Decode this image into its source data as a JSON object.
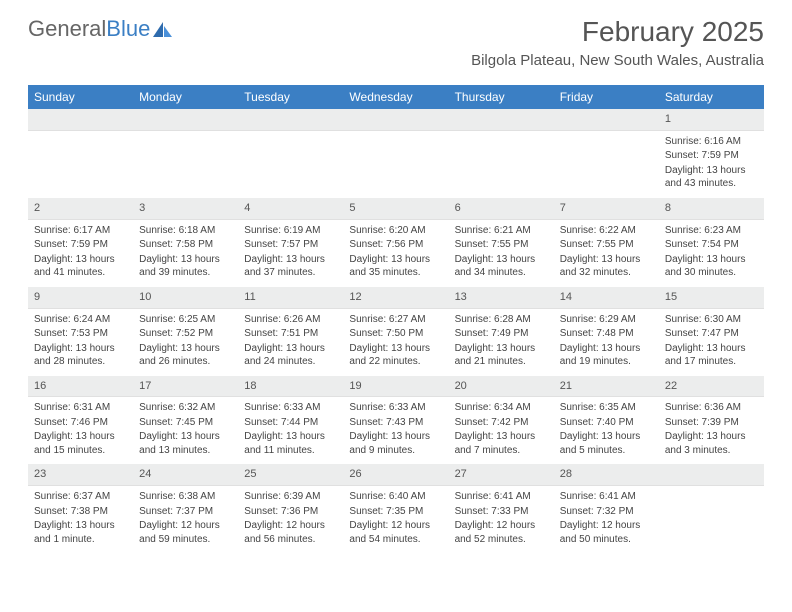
{
  "logo": {
    "text_gray": "General",
    "text_blue": "Blue"
  },
  "title": "February 2025",
  "location": "Bilgola Plateau, New South Wales, Australia",
  "colors": {
    "header_bg": "#3b7fc4",
    "header_text": "#ffffff",
    "daynum_bg": "#eceded",
    "text": "#444444"
  },
  "daysOfWeek": [
    "Sunday",
    "Monday",
    "Tuesday",
    "Wednesday",
    "Thursday",
    "Friday",
    "Saturday"
  ],
  "weeks": [
    [
      null,
      null,
      null,
      null,
      null,
      null,
      {
        "num": "1",
        "sunrise": "Sunrise: 6:16 AM",
        "sunset": "Sunset: 7:59 PM",
        "daylight": "Daylight: 13 hours and 43 minutes."
      }
    ],
    [
      {
        "num": "2",
        "sunrise": "Sunrise: 6:17 AM",
        "sunset": "Sunset: 7:59 PM",
        "daylight": "Daylight: 13 hours and 41 minutes."
      },
      {
        "num": "3",
        "sunrise": "Sunrise: 6:18 AM",
        "sunset": "Sunset: 7:58 PM",
        "daylight": "Daylight: 13 hours and 39 minutes."
      },
      {
        "num": "4",
        "sunrise": "Sunrise: 6:19 AM",
        "sunset": "Sunset: 7:57 PM",
        "daylight": "Daylight: 13 hours and 37 minutes."
      },
      {
        "num": "5",
        "sunrise": "Sunrise: 6:20 AM",
        "sunset": "Sunset: 7:56 PM",
        "daylight": "Daylight: 13 hours and 35 minutes."
      },
      {
        "num": "6",
        "sunrise": "Sunrise: 6:21 AM",
        "sunset": "Sunset: 7:55 PM",
        "daylight": "Daylight: 13 hours and 34 minutes."
      },
      {
        "num": "7",
        "sunrise": "Sunrise: 6:22 AM",
        "sunset": "Sunset: 7:55 PM",
        "daylight": "Daylight: 13 hours and 32 minutes."
      },
      {
        "num": "8",
        "sunrise": "Sunrise: 6:23 AM",
        "sunset": "Sunset: 7:54 PM",
        "daylight": "Daylight: 13 hours and 30 minutes."
      }
    ],
    [
      {
        "num": "9",
        "sunrise": "Sunrise: 6:24 AM",
        "sunset": "Sunset: 7:53 PM",
        "daylight": "Daylight: 13 hours and 28 minutes."
      },
      {
        "num": "10",
        "sunrise": "Sunrise: 6:25 AM",
        "sunset": "Sunset: 7:52 PM",
        "daylight": "Daylight: 13 hours and 26 minutes."
      },
      {
        "num": "11",
        "sunrise": "Sunrise: 6:26 AM",
        "sunset": "Sunset: 7:51 PM",
        "daylight": "Daylight: 13 hours and 24 minutes."
      },
      {
        "num": "12",
        "sunrise": "Sunrise: 6:27 AM",
        "sunset": "Sunset: 7:50 PM",
        "daylight": "Daylight: 13 hours and 22 minutes."
      },
      {
        "num": "13",
        "sunrise": "Sunrise: 6:28 AM",
        "sunset": "Sunset: 7:49 PM",
        "daylight": "Daylight: 13 hours and 21 minutes."
      },
      {
        "num": "14",
        "sunrise": "Sunrise: 6:29 AM",
        "sunset": "Sunset: 7:48 PM",
        "daylight": "Daylight: 13 hours and 19 minutes."
      },
      {
        "num": "15",
        "sunrise": "Sunrise: 6:30 AM",
        "sunset": "Sunset: 7:47 PM",
        "daylight": "Daylight: 13 hours and 17 minutes."
      }
    ],
    [
      {
        "num": "16",
        "sunrise": "Sunrise: 6:31 AM",
        "sunset": "Sunset: 7:46 PM",
        "daylight": "Daylight: 13 hours and 15 minutes."
      },
      {
        "num": "17",
        "sunrise": "Sunrise: 6:32 AM",
        "sunset": "Sunset: 7:45 PM",
        "daylight": "Daylight: 13 hours and 13 minutes."
      },
      {
        "num": "18",
        "sunrise": "Sunrise: 6:33 AM",
        "sunset": "Sunset: 7:44 PM",
        "daylight": "Daylight: 13 hours and 11 minutes."
      },
      {
        "num": "19",
        "sunrise": "Sunrise: 6:33 AM",
        "sunset": "Sunset: 7:43 PM",
        "daylight": "Daylight: 13 hours and 9 minutes."
      },
      {
        "num": "20",
        "sunrise": "Sunrise: 6:34 AM",
        "sunset": "Sunset: 7:42 PM",
        "daylight": "Daylight: 13 hours and 7 minutes."
      },
      {
        "num": "21",
        "sunrise": "Sunrise: 6:35 AM",
        "sunset": "Sunset: 7:40 PM",
        "daylight": "Daylight: 13 hours and 5 minutes."
      },
      {
        "num": "22",
        "sunrise": "Sunrise: 6:36 AM",
        "sunset": "Sunset: 7:39 PM",
        "daylight": "Daylight: 13 hours and 3 minutes."
      }
    ],
    [
      {
        "num": "23",
        "sunrise": "Sunrise: 6:37 AM",
        "sunset": "Sunset: 7:38 PM",
        "daylight": "Daylight: 13 hours and 1 minute."
      },
      {
        "num": "24",
        "sunrise": "Sunrise: 6:38 AM",
        "sunset": "Sunset: 7:37 PM",
        "daylight": "Daylight: 12 hours and 59 minutes."
      },
      {
        "num": "25",
        "sunrise": "Sunrise: 6:39 AM",
        "sunset": "Sunset: 7:36 PM",
        "daylight": "Daylight: 12 hours and 56 minutes."
      },
      {
        "num": "26",
        "sunrise": "Sunrise: 6:40 AM",
        "sunset": "Sunset: 7:35 PM",
        "daylight": "Daylight: 12 hours and 54 minutes."
      },
      {
        "num": "27",
        "sunrise": "Sunrise: 6:41 AM",
        "sunset": "Sunset: 7:33 PM",
        "daylight": "Daylight: 12 hours and 52 minutes."
      },
      {
        "num": "28",
        "sunrise": "Sunrise: 6:41 AM",
        "sunset": "Sunset: 7:32 PM",
        "daylight": "Daylight: 12 hours and 50 minutes."
      },
      null
    ]
  ]
}
